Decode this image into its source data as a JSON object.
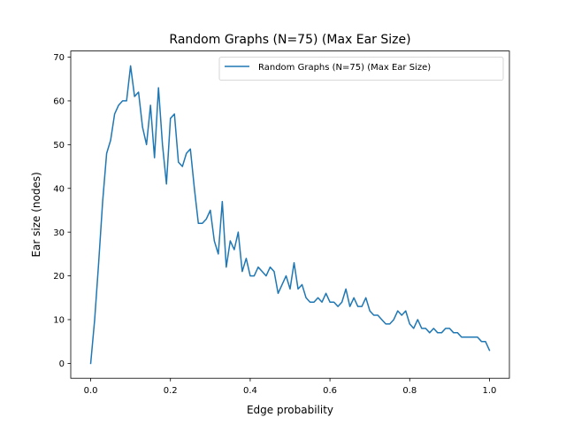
{
  "chart_data": {
    "type": "line",
    "title": "Random Graphs (N=75) (Max Ear Size)",
    "xlabel": "Edge probability",
    "ylabel": "Ear size (nodes)",
    "xlim": [
      -0.05,
      1.05
    ],
    "ylim": [
      -3.4,
      71.4
    ],
    "xticks": [
      0.0,
      0.2,
      0.4,
      0.6,
      0.8,
      1.0
    ],
    "xtick_labels": [
      "0.0",
      "0.2",
      "0.4",
      "0.6",
      "0.8",
      "1.0"
    ],
    "yticks": [
      0,
      10,
      20,
      30,
      40,
      50,
      60,
      70
    ],
    "ytick_labels": [
      "0",
      "10",
      "20",
      "30",
      "40",
      "50",
      "60",
      "70"
    ],
    "grid": false,
    "legend_position": "top-right",
    "colors": {
      "series": "#1f77b4"
    },
    "series": [
      {
        "name": "Random Graphs (N=75) (Max Ear Size)",
        "x": [
          0.0,
          0.01,
          0.02,
          0.03,
          0.04,
          0.05,
          0.06,
          0.07,
          0.08,
          0.09,
          0.1,
          0.11,
          0.12,
          0.13,
          0.14,
          0.15,
          0.16,
          0.17,
          0.18,
          0.19,
          0.2,
          0.21,
          0.22,
          0.23,
          0.24,
          0.25,
          0.26,
          0.27,
          0.28,
          0.29,
          0.3,
          0.31,
          0.32,
          0.33,
          0.34,
          0.35,
          0.36,
          0.37,
          0.38,
          0.39,
          0.4,
          0.41,
          0.42,
          0.43,
          0.44,
          0.45,
          0.46,
          0.47,
          0.48,
          0.49,
          0.5,
          0.51,
          0.52,
          0.53,
          0.54,
          0.55,
          0.56,
          0.57,
          0.58,
          0.59,
          0.6,
          0.61,
          0.62,
          0.63,
          0.64,
          0.65,
          0.66,
          0.67,
          0.68,
          0.69,
          0.7,
          0.71,
          0.72,
          0.73,
          0.74,
          0.75,
          0.76,
          0.77,
          0.78,
          0.79,
          0.8,
          0.81,
          0.82,
          0.83,
          0.84,
          0.85,
          0.86,
          0.87,
          0.88,
          0.89,
          0.9,
          0.91,
          0.92,
          0.93,
          0.94,
          0.95,
          0.96,
          0.97,
          0.98,
          0.99,
          1.0
        ],
        "y": [
          0,
          10,
          23,
          37,
          48,
          51,
          57,
          59,
          60,
          60,
          68,
          61,
          62,
          54,
          50,
          59,
          47,
          63,
          50,
          41,
          56,
          57,
          46,
          45,
          48,
          49,
          40,
          32,
          32,
          33,
          35,
          28,
          25,
          37,
          22,
          28,
          26,
          30,
          21,
          24,
          20,
          20,
          22,
          21,
          20,
          22,
          21,
          16,
          18,
          20,
          17,
          23,
          17,
          18,
          15,
          14,
          14,
          15,
          14,
          16,
          14,
          14,
          13,
          14,
          17,
          13,
          15,
          13,
          13,
          15,
          12,
          11,
          11,
          10,
          9,
          9,
          10,
          12,
          11,
          12,
          9,
          8,
          10,
          8,
          8,
          7,
          8,
          7,
          7,
          8,
          8,
          7,
          7,
          6,
          6,
          6,
          6,
          6,
          5,
          5,
          3
        ]
      }
    ]
  }
}
